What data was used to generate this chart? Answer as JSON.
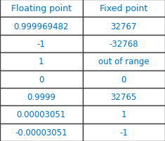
{
  "headers": [
    "Floating point",
    "Fixed point"
  ],
  "rows": [
    [
      "0.999969482",
      "32767"
    ],
    [
      "-1",
      "-32768"
    ],
    [
      "1",
      "out of range"
    ],
    [
      "0",
      "0"
    ],
    [
      "0.9999",
      "32765"
    ],
    [
      "0.00003051",
      "1"
    ],
    [
      "-0.00003051",
      "-1"
    ]
  ],
  "header_text_color": "#0070c0",
  "cell_text_color": "#0070c0",
  "border_color": "#404040",
  "bg_color": "#ffffff",
  "font_size": 8.5,
  "header_font_size": 9.0,
  "fig_width": 2.35,
  "fig_height": 2.03,
  "dpi": 100
}
